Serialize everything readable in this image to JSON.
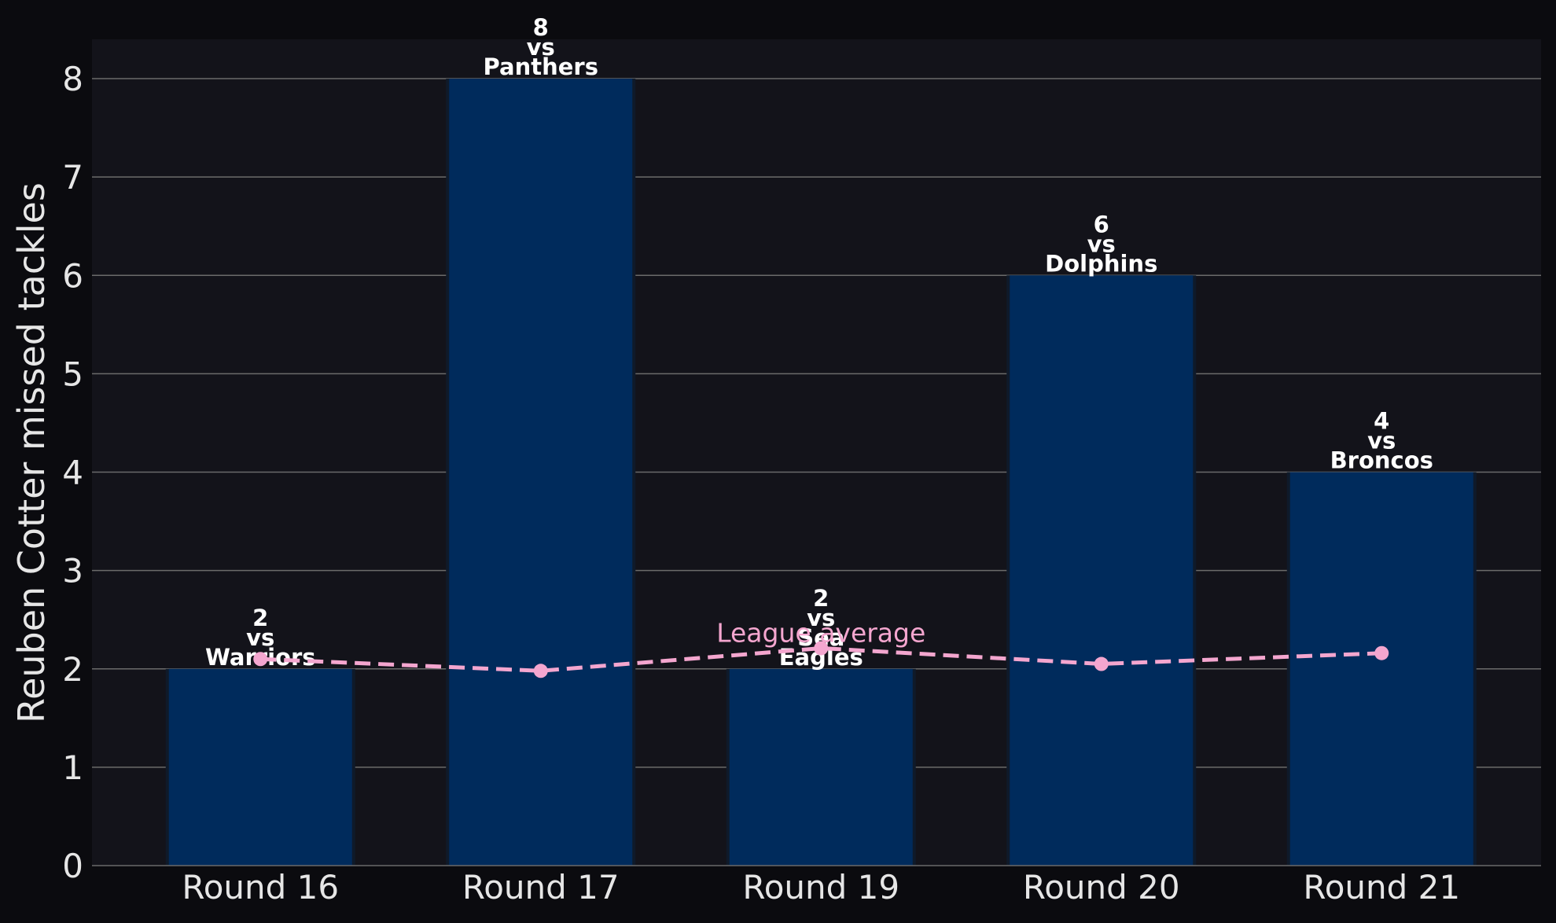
{
  "chart_data": {
    "type": "bar",
    "categories": [
      "Round 16",
      "Round 17",
      "Round 19",
      "Round 20",
      "Round 21"
    ],
    "values": [
      2,
      8,
      2,
      6,
      4
    ],
    "opponents": [
      "Warriors",
      "Panthers",
      "Sea\nEagles",
      "Dolphins",
      "Broncos"
    ],
    "bar_label_connector": "vs",
    "ylabel": "Reuben Cotter missed tackles",
    "xlabel": "",
    "ylim": [
      0,
      8.4
    ],
    "yticks": [
      0,
      1,
      2,
      3,
      4,
      5,
      6,
      7,
      8
    ],
    "grid": "horizontal",
    "series": [
      {
        "name": "Reuben Cotter missed tackles",
        "type": "bar",
        "values": [
          2,
          8,
          2,
          6,
          4
        ]
      },
      {
        "name": "League average",
        "type": "line",
        "style": "dashed",
        "values": [
          2.1,
          1.98,
          2.21,
          2.05,
          2.16
        ]
      }
    ],
    "league_average_label": "League average",
    "colors": {
      "background": "#0b0b0f",
      "plot_background": "#13131a",
      "bar": "#002b5c",
      "grid": "#6b6b6b",
      "text": "#e6e6e6",
      "bar_label": "#ffffff",
      "average": "#f4a6cf"
    }
  }
}
